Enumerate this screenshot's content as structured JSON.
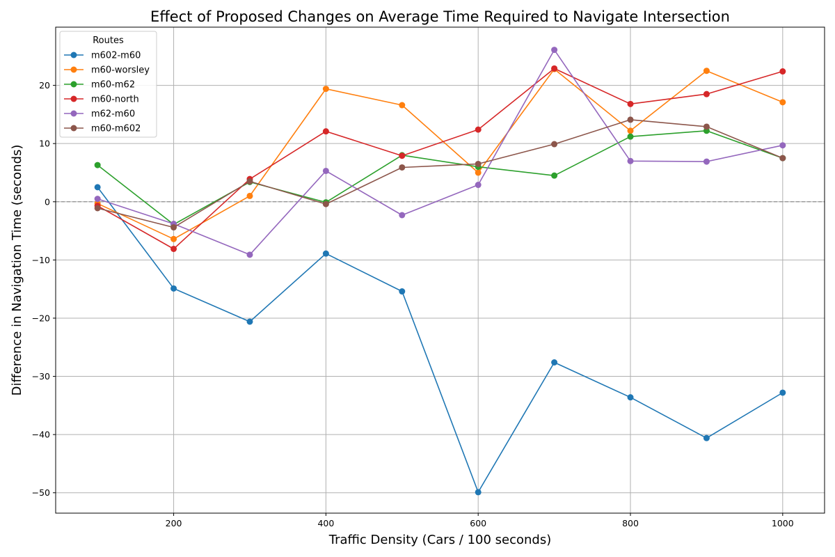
{
  "chart_data": {
    "type": "line",
    "title": "Effect of Proposed Changes on Average Time Required to Navigate Intersection",
    "xlabel": "Traffic Density (Cars / 100 seconds)",
    "ylabel": "Difference in Navigation Time (seconds)",
    "xlim": [
      45,
      1055
    ],
    "ylim": [
      -53.5,
      30
    ],
    "xticks": [
      200,
      400,
      600,
      800,
      1000
    ],
    "yticks": [
      -50,
      -40,
      -30,
      -20,
      -10,
      0,
      10,
      20
    ],
    "grid": true,
    "zero_line": true,
    "legend": {
      "title": "Routes",
      "placement": "top-left"
    },
    "x": [
      100,
      200,
      300,
      400,
      500,
      600,
      700,
      800,
      900,
      1000
    ],
    "series": [
      {
        "name": "m602-m60",
        "color": "#1f77b4",
        "values": [
          2.5,
          -14.9,
          -20.6,
          -8.9,
          -15.4,
          -49.9,
          -27.6,
          -33.6,
          -40.6,
          -32.8
        ]
      },
      {
        "name": "m60-worsley",
        "color": "#ff7f0e",
        "values": [
          -0.3,
          -6.4,
          1.0,
          19.4,
          16.6,
          5.0,
          22.8,
          12.2,
          22.5,
          17.1
        ]
      },
      {
        "name": "m60-m62",
        "color": "#2ca02c",
        "values": [
          6.3,
          -3.9,
          3.4,
          -0.1,
          8.0,
          6.0,
          4.5,
          11.2,
          12.2,
          7.5
        ]
      },
      {
        "name": "m60-north",
        "color": "#d62728",
        "values": [
          -0.7,
          -8.1,
          3.9,
          12.1,
          7.9,
          12.4,
          22.9,
          16.8,
          18.5,
          22.4
        ]
      },
      {
        "name": "m62-m60",
        "color": "#9467bd",
        "values": [
          0.5,
          -3.8,
          -9.1,
          5.3,
          -2.3,
          2.9,
          26.1,
          7.0,
          6.9,
          9.7
        ]
      },
      {
        "name": "m60-m602",
        "color": "#8c564b",
        "values": [
          -1.1,
          -4.4,
          3.5,
          -0.4,
          5.9,
          6.5,
          9.9,
          14.1,
          12.9,
          7.5
        ]
      }
    ]
  }
}
